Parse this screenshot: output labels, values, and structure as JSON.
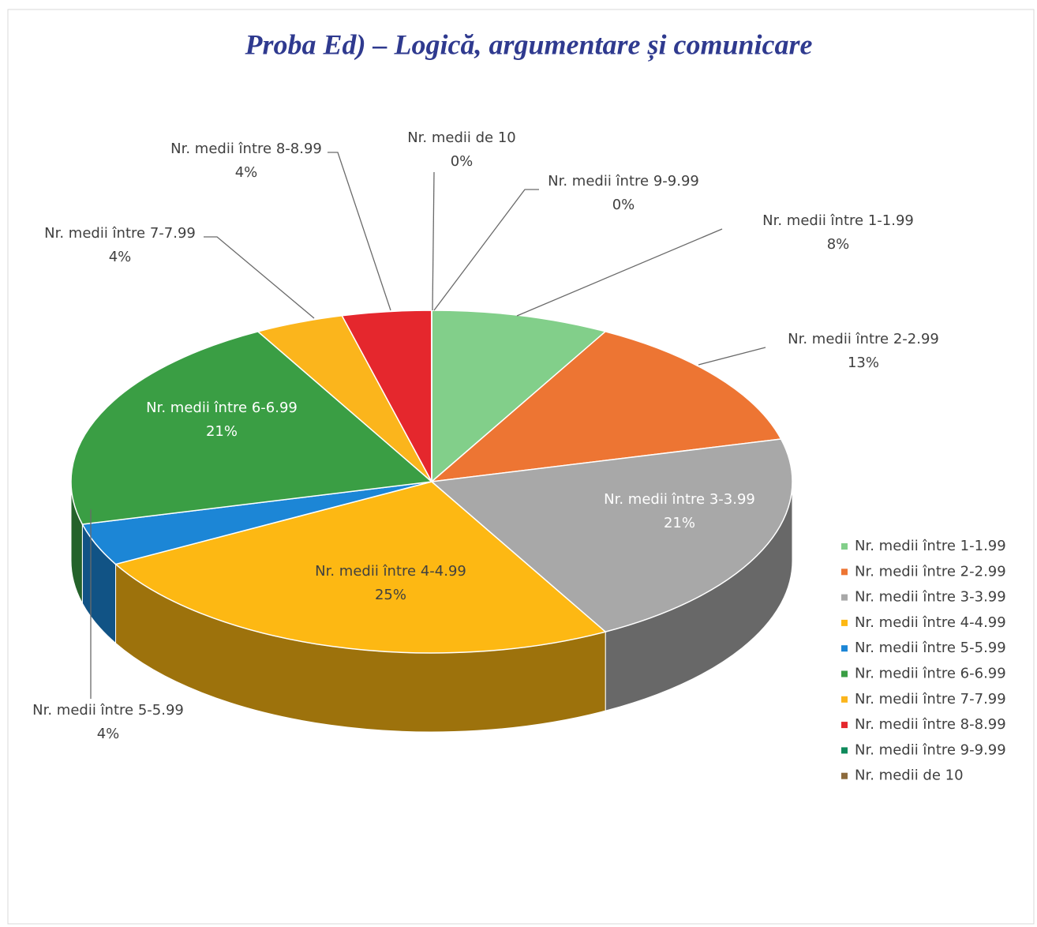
{
  "chart_data": {
    "type": "pie",
    "title": "Proba Ed) – Logică, argumentare și comunicare",
    "categories": [
      "Nr. medii între 1-1.99",
      "Nr. medii între 2-2.99",
      "Nr. medii între 3-3.99",
      "Nr. medii între 4-4.99",
      "Nr. medii între 5-5.99",
      "Nr. medii între 6-6.99",
      "Nr. medii între 7-7.99",
      "Nr. medii între 8-8.99",
      "Nr. medii între 9-9.99",
      "Nr. medii de 10"
    ],
    "values": [
      8,
      13,
      21,
      25,
      4,
      21,
      4,
      4,
      0,
      0
    ],
    "value_labels": [
      "8%",
      "13%",
      "21%",
      "25%",
      "4%",
      "21%",
      "4%",
      "4%",
      "0%",
      "0%"
    ],
    "colors": [
      "#82cf8a",
      "#ed7533",
      "#a8a8a8",
      "#fdb813",
      "#1c86d6",
      "#3a9e44",
      "#fbb51c",
      "#e5272d",
      "#0f8a5c",
      "#8c6a3c"
    ],
    "legend": "right"
  }
}
